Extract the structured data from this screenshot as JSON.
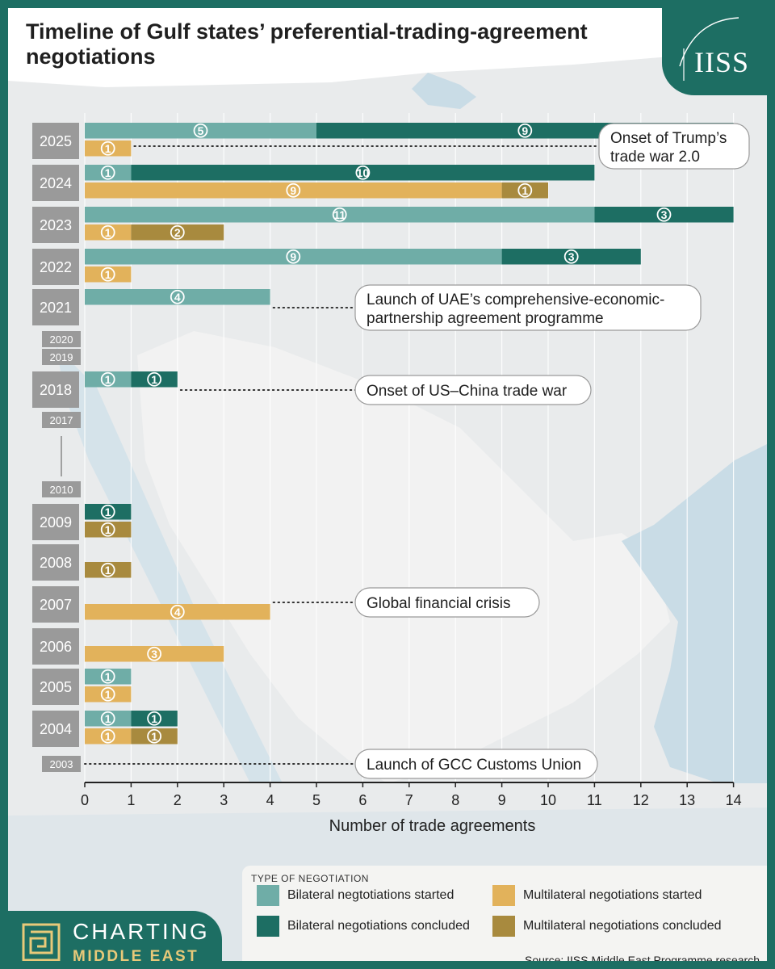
{
  "title": "Timeline of Gulf states’ preferential-trading-agreement negotiations",
  "logo": "IISS",
  "chart_data": {
    "type": "bar",
    "orientation": "horizontal",
    "stacked": true,
    "title": "Timeline of Gulf states’ preferential-trading-agreement negotiations",
    "xlabel": "Number of  trade agreements",
    "xlim": [
      0,
      14
    ],
    "xticks": [
      "0",
      "1",
      "2",
      "3",
      "4",
      "5",
      "6",
      "7",
      "8",
      "9",
      "10",
      "11",
      "12",
      "13",
      "14"
    ],
    "grid": true,
    "colors": {
      "bilateral_started": "#6fada7",
      "bilateral_concluded": "#1d6e63",
      "multilateral_started": "#e2b25b",
      "multilateral_concluded": "#a88a3e"
    },
    "years": [
      {
        "label": "2025",
        "bilateral": [
          5,
          9
        ],
        "multilateral": [
          1,
          0
        ]
      },
      {
        "label": "2024",
        "bilateral": [
          1,
          10
        ],
        "multilateral": [
          9,
          1
        ]
      },
      {
        "label": "2023",
        "bilateral": [
          11,
          3
        ],
        "multilateral": [
          1,
          2
        ]
      },
      {
        "label": "2022",
        "bilateral": [
          9,
          3
        ],
        "multilateral": [
          1,
          0
        ]
      },
      {
        "label": "2021",
        "bilateral": [
          4,
          0
        ],
        "multilateral": [
          0,
          0
        ]
      },
      {
        "label": "2020",
        "bilateral": [
          0,
          0
        ],
        "multilateral": [
          0,
          0
        ]
      },
      {
        "label": "2019",
        "bilateral": [
          0,
          0
        ],
        "multilateral": [
          0,
          0
        ]
      },
      {
        "label": "2018",
        "bilateral": [
          1,
          1
        ],
        "multilateral": [
          0,
          0
        ]
      },
      {
        "label": "2017",
        "bilateral": [
          0,
          0
        ],
        "multilateral": [
          0,
          0
        ]
      },
      {
        "label": "2010",
        "bilateral": [
          0,
          0
        ],
        "multilateral": [
          0,
          0
        ]
      },
      {
        "label": "2009",
        "bilateral": [
          0,
          1
        ],
        "multilateral": [
          0,
          1
        ]
      },
      {
        "label": "2008",
        "bilateral": [
          0,
          0
        ],
        "multilateral": [
          0,
          1
        ]
      },
      {
        "label": "2007",
        "bilateral": [
          0,
          0
        ],
        "multilateral": [
          4,
          0
        ]
      },
      {
        "label": "2006",
        "bilateral": [
          0,
          0
        ],
        "multilateral": [
          3,
          0
        ]
      },
      {
        "label": "2005",
        "bilateral": [
          1,
          0
        ],
        "multilateral": [
          1,
          0
        ]
      },
      {
        "label": "2004",
        "bilateral": [
          1,
          1
        ],
        "multilateral": [
          1,
          1
        ]
      },
      {
        "label": "2003",
        "bilateral": [
          0,
          0
        ],
        "multilateral": [
          0,
          0
        ]
      }
    ],
    "annotations": [
      {
        "year": "2025",
        "lines": [
          "Onset of Trump’s",
          "trade war 2.0"
        ]
      },
      {
        "year": "2021",
        "lines": [
          "Launch of UAE’s comprehensive-economic-",
          "partnership agreement programme"
        ]
      },
      {
        "year": "2018",
        "lines": [
          "Onset of US–China trade war"
        ]
      },
      {
        "year": "2007",
        "lines": [
          "Global financial crisis"
        ]
      },
      {
        "year": "2003",
        "lines": [
          "Launch of GCC Customs Union"
        ]
      }
    ],
    "legend": {
      "title": "TYPE OF NEGOTIATION",
      "items": [
        {
          "key": "bilateral_started",
          "label": "Bilateral negtotiations started"
        },
        {
          "key": "bilateral_concluded",
          "label": "Bilateral negotiations concluded"
        },
        {
          "key": "multilateral_started",
          "label": "Multilateral negotiations started"
        },
        {
          "key": "multilateral_concluded",
          "label": "Multilateral negotiations concluded"
        }
      ]
    }
  },
  "source": "Source: IISS Middle East Programme research",
  "brand": {
    "line1": "CHARTING",
    "line2": "MIDDLE EAST"
  }
}
